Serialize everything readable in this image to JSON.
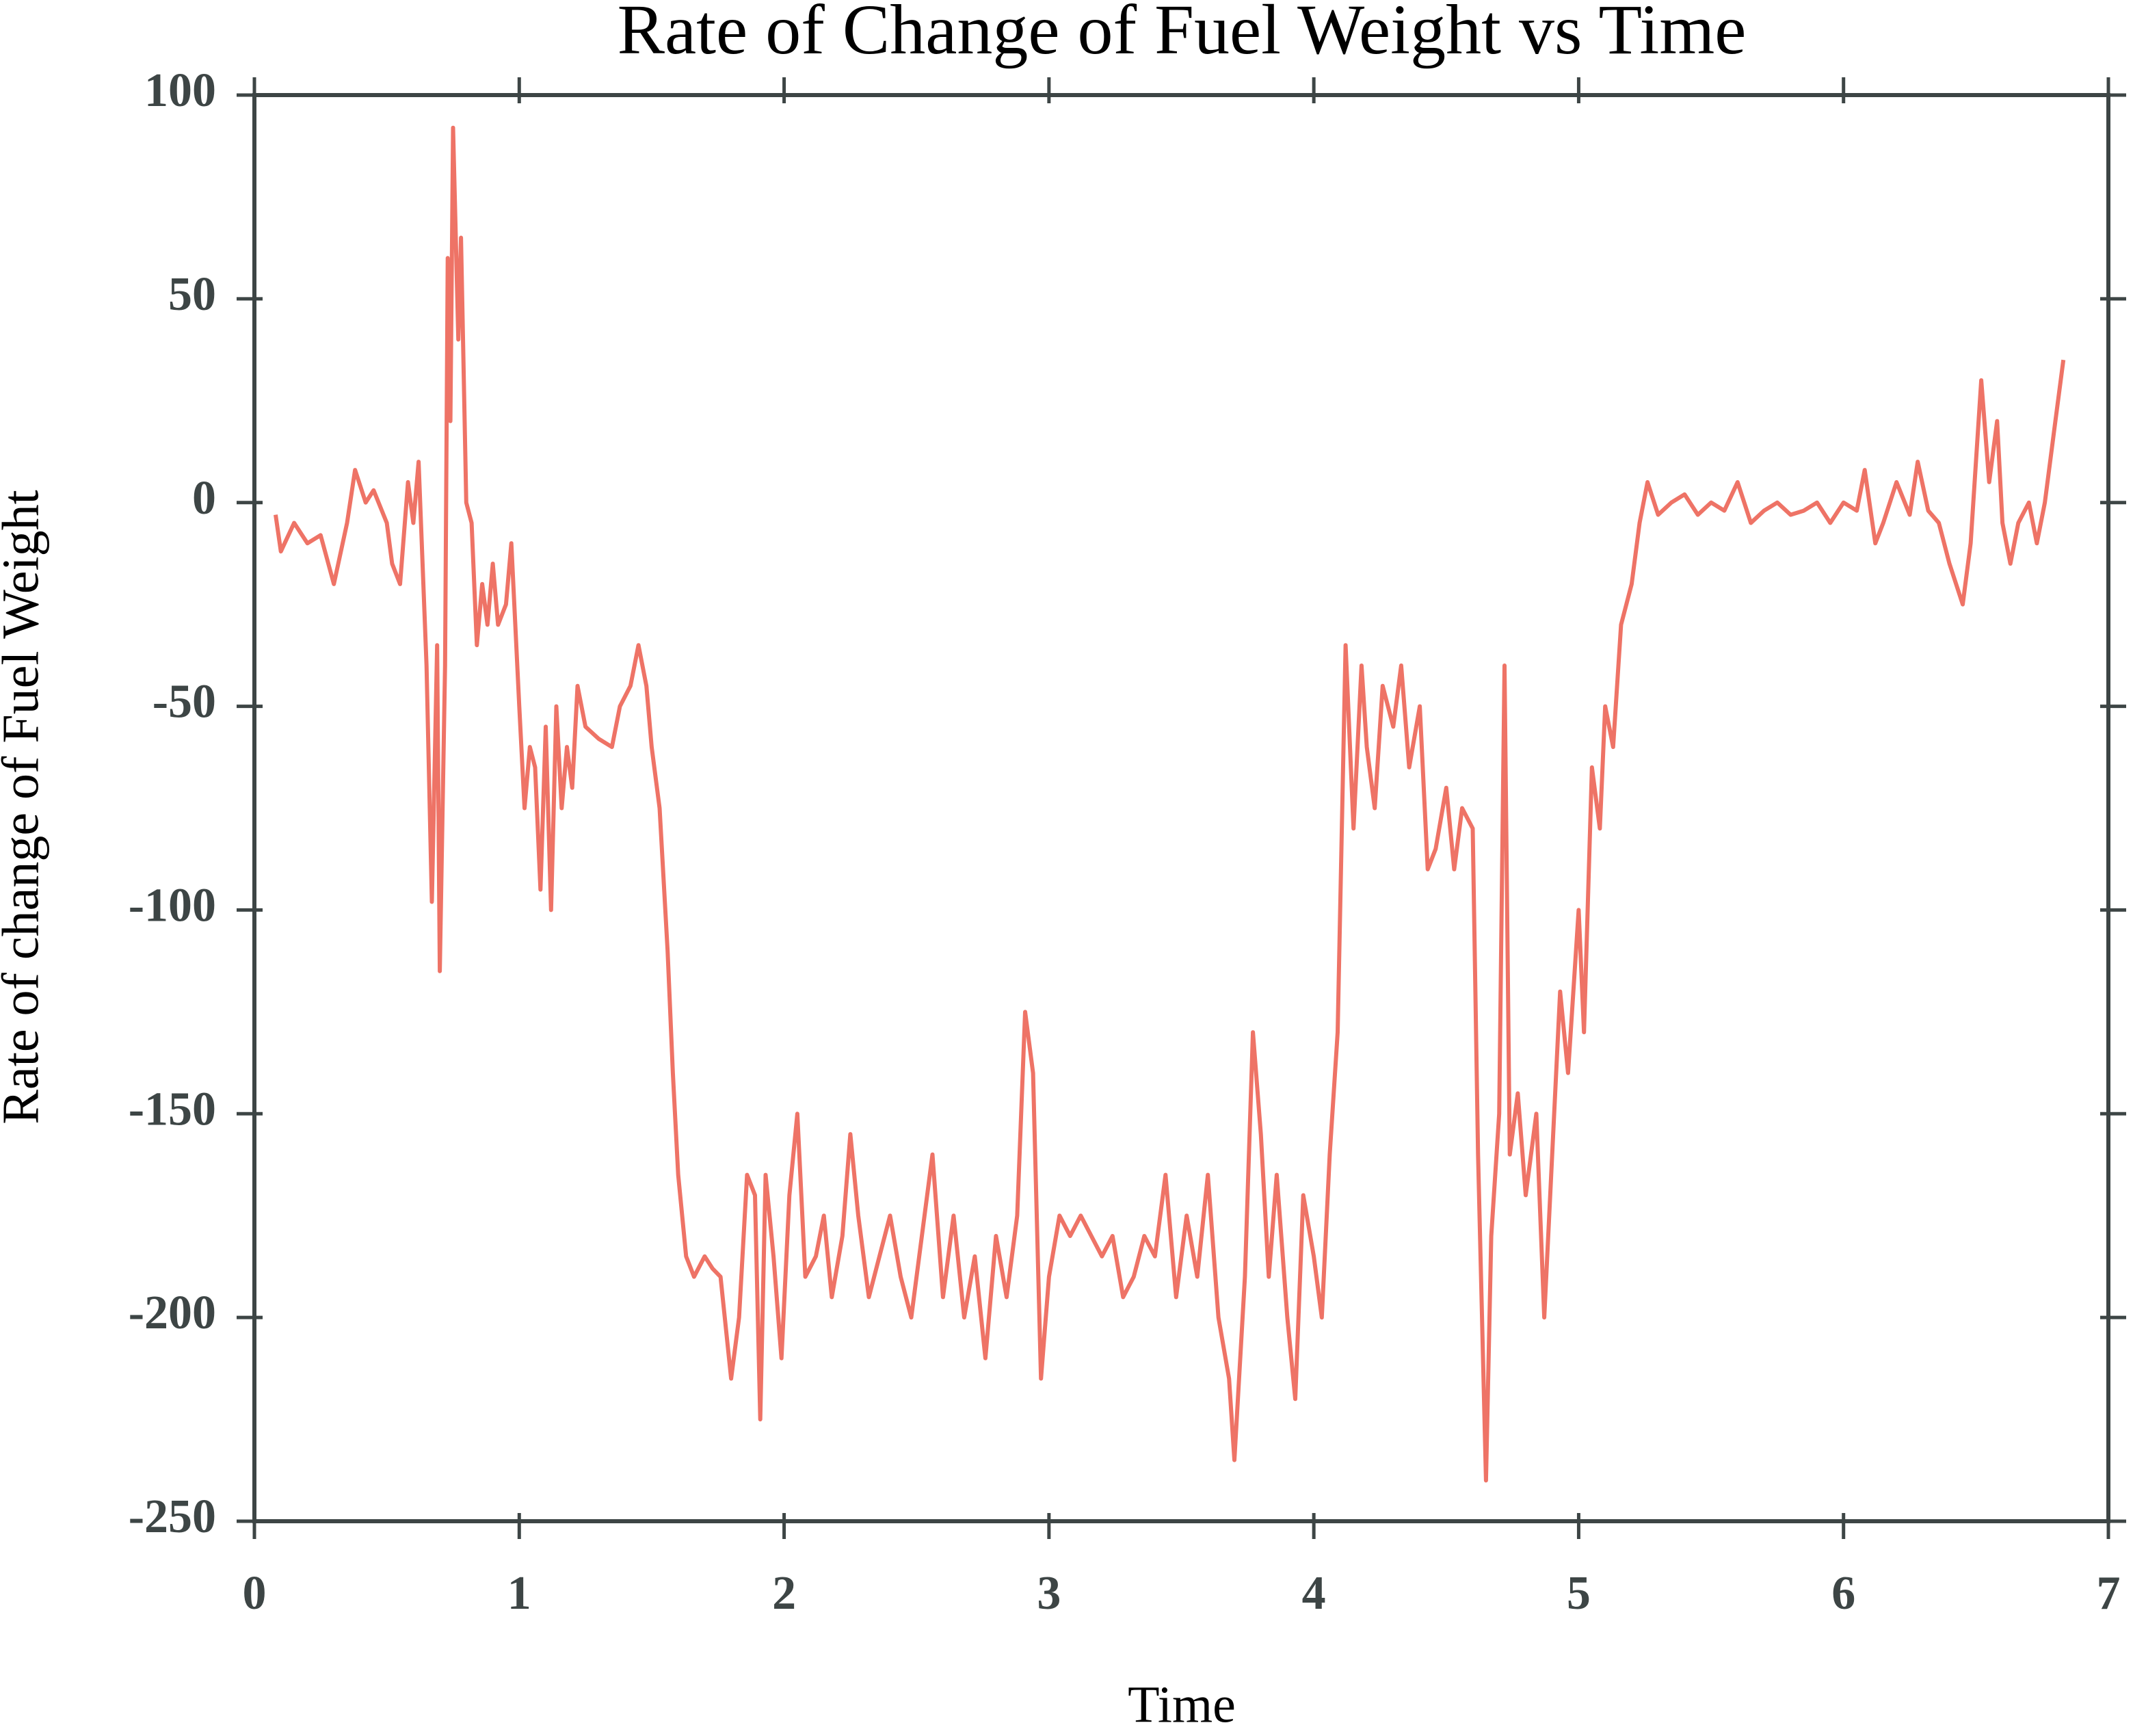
{
  "chart_data": {
    "type": "line",
    "title": "Rate of Change of Fuel Weight vs Time",
    "x_label": "Time",
    "y_label": "Rate of change of Fuel Weight",
    "xlim": [
      0,
      7
    ],
    "xticks": [
      0,
      1,
      2,
      3,
      4,
      5,
      6,
      7
    ],
    "ylim": [
      -250,
      100
    ],
    "yticks": [
      -250,
      -200,
      -150,
      -100,
      -50,
      0,
      50,
      100
    ],
    "grid": false,
    "series": [
      {
        "name": "Rate of change of Fuel Weight",
        "color": "#ee7366",
        "x": [
          0.08,
          0.1,
          0.15,
          0.2,
          0.25,
          0.3,
          0.35,
          0.38,
          0.42,
          0.45,
          0.5,
          0.52,
          0.55,
          0.58,
          0.6,
          0.62,
          0.65,
          0.67,
          0.69,
          0.7,
          0.72,
          0.73,
          0.74,
          0.75,
          0.77,
          0.78,
          0.8,
          0.82,
          0.84,
          0.86,
          0.88,
          0.9,
          0.92,
          0.95,
          0.97,
          1.0,
          1.02,
          1.04,
          1.06,
          1.08,
          1.1,
          1.12,
          1.14,
          1.16,
          1.18,
          1.2,
          1.22,
          1.25,
          1.3,
          1.35,
          1.38,
          1.42,
          1.45,
          1.48,
          1.5,
          1.53,
          1.56,
          1.58,
          1.6,
          1.63,
          1.66,
          1.7,
          1.73,
          1.76,
          1.8,
          1.83,
          1.86,
          1.89,
          1.91,
          1.93,
          1.96,
          1.99,
          2.02,
          2.05,
          2.08,
          2.12,
          2.15,
          2.18,
          2.22,
          2.25,
          2.28,
          2.32,
          2.36,
          2.4,
          2.44,
          2.48,
          2.52,
          2.56,
          2.6,
          2.64,
          2.68,
          2.72,
          2.76,
          2.8,
          2.84,
          2.88,
          2.91,
          2.94,
          2.97,
          3.0,
          3.04,
          3.08,
          3.12,
          3.16,
          3.2,
          3.24,
          3.28,
          3.32,
          3.36,
          3.4,
          3.44,
          3.48,
          3.52,
          3.56,
          3.6,
          3.64,
          3.68,
          3.7,
          3.74,
          3.77,
          3.8,
          3.83,
          3.86,
          3.9,
          3.93,
          3.96,
          4.0,
          4.03,
          4.06,
          4.09,
          4.12,
          4.15,
          4.18,
          4.2,
          4.23,
          4.26,
          4.3,
          4.33,
          4.36,
          4.4,
          4.43,
          4.46,
          4.5,
          4.53,
          4.56,
          4.6,
          4.62,
          4.65,
          4.67,
          4.7,
          4.72,
          4.74,
          4.77,
          4.8,
          4.84,
          4.87,
          4.9,
          4.93,
          4.96,
          5.0,
          5.02,
          5.05,
          5.08,
          5.1,
          5.13,
          5.16,
          5.2,
          5.23,
          5.26,
          5.3,
          5.35,
          5.4,
          5.45,
          5.5,
          5.55,
          5.6,
          5.65,
          5.7,
          5.75,
          5.8,
          5.85,
          5.9,
          5.95,
          6.0,
          6.05,
          6.08,
          6.12,
          6.15,
          6.2,
          6.25,
          6.28,
          6.32,
          6.36,
          6.4,
          6.45,
          6.48,
          6.52,
          6.55,
          6.58,
          6.6,
          6.63,
          6.66,
          6.7,
          6.73,
          6.76,
          6.8,
          6.83
        ],
        "values": [
          -3,
          -12,
          -5,
          -10,
          -8,
          -20,
          -5,
          8,
          0,
          3,
          -5,
          -15,
          -20,
          5,
          -5,
          10,
          -40,
          -98,
          -35,
          -115,
          -40,
          60,
          20,
          92,
          40,
          65,
          0,
          -5,
          -35,
          -20,
          -30,
          -15,
          -30,
          -25,
          -10,
          -50,
          -75,
          -60,
          -65,
          -95,
          -55,
          -100,
          -50,
          -75,
          -60,
          -70,
          -45,
          -55,
          -58,
          -60,
          -50,
          -45,
          -35,
          -45,
          -60,
          -75,
          -110,
          -140,
          -165,
          -185,
          -190,
          -185,
          -188,
          -190,
          -215,
          -200,
          -165,
          -170,
          -225,
          -165,
          -185,
          -210,
          -170,
          -150,
          -190,
          -185,
          -175,
          -195,
          -180,
          -155,
          -175,
          -195,
          -185,
          -175,
          -190,
          -200,
          -180,
          -160,
          -195,
          -175,
          -200,
          -185,
          -210,
          -180,
          -195,
          -175,
          -125,
          -140,
          -215,
          -190,
          -175,
          -180,
          -175,
          -180,
          -185,
          -180,
          -195,
          -190,
          -180,
          -185,
          -165,
          -195,
          -175,
          -190,
          -165,
          -200,
          -215,
          -235,
          -190,
          -130,
          -155,
          -190,
          -165,
          -200,
          -220,
          -170,
          -185,
          -200,
          -160,
          -130,
          -35,
          -80,
          -40,
          -60,
          -75,
          -45,
          -55,
          -40,
          -65,
          -50,
          -90,
          -85,
          -70,
          -90,
          -75,
          -80,
          -160,
          -240,
          -180,
          -150,
          -40,
          -160,
          -145,
          -170,
          -150,
          -200,
          -160,
          -120,
          -140,
          -100,
          -130,
          -65,
          -80,
          -50,
          -60,
          -30,
          -20,
          -5,
          5,
          -3,
          0,
          2,
          -3,
          0,
          -2,
          5,
          -5,
          -2,
          0,
          -3,
          -2,
          0,
          -5,
          0,
          -2,
          8,
          -10,
          -5,
          5,
          -3,
          10,
          -2,
          -5,
          -15,
          -25,
          -10,
          30,
          5,
          20,
          -5,
          -15,
          -5,
          0,
          -10,
          0,
          20,
          35
        ]
      }
    ]
  }
}
